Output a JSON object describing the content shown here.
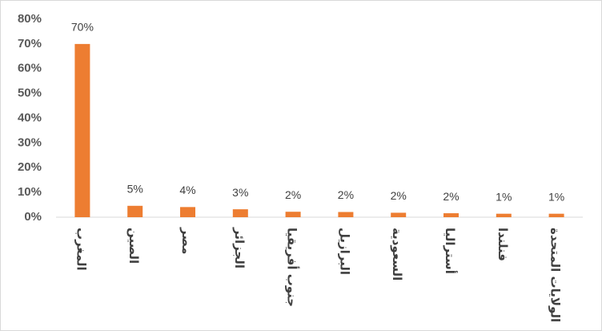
{
  "chart_data": {
    "type": "bar",
    "categories": [
      "المغرب",
      "الصين",
      "مصر",
      "الجزائر",
      "جنوب أفريقيا",
      "البرازيل",
      "السعودية",
      "أستراليا",
      "فنلندا",
      "الولايات المتحدة"
    ],
    "values": [
      70,
      4.6,
      4.1,
      3.2,
      2.2,
      2.1,
      1.8,
      1.6,
      1.4,
      1.4
    ],
    "value_labels": [
      "70%",
      "5%",
      "4%",
      "3%",
      "2%",
      "2%",
      "2%",
      "2%",
      "1%",
      "1%"
    ],
    "color": "#ed7d31",
    "ylim": [
      0,
      80
    ],
    "yticks": [
      {
        "value": 0,
        "label": "0%"
      },
      {
        "value": 10,
        "label": "10%"
      },
      {
        "value": 20,
        "label": "20%"
      },
      {
        "value": 30,
        "label": "30%"
      },
      {
        "value": 40,
        "label": "40%"
      },
      {
        "value": 50,
        "label": "50%"
      },
      {
        "value": 60,
        "label": "60%"
      },
      {
        "value": 70,
        "label": "70%"
      },
      {
        "value": 80,
        "label": "80%"
      }
    ],
    "grid": false
  }
}
